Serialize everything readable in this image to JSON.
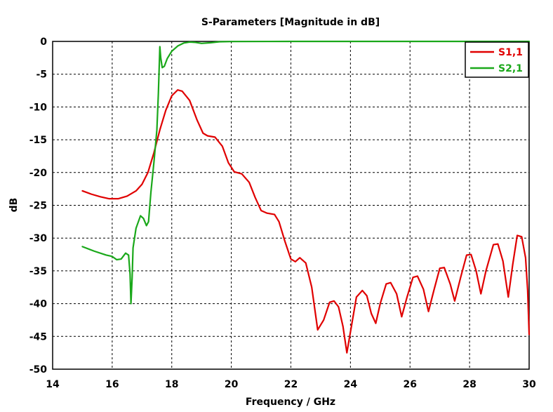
{
  "chart_data": {
    "type": "line",
    "title": "S-Parameters [Magnitude in dB]",
    "xlabel": "Frequency / GHz",
    "ylabel": "dB",
    "xlim": [
      14,
      30
    ],
    "ylim": [
      -50,
      0
    ],
    "xticks": [
      14,
      16,
      18,
      20,
      22,
      24,
      26,
      28,
      30
    ],
    "yticks": [
      0,
      -5,
      -10,
      -15,
      -20,
      -25,
      -30,
      -35,
      -40,
      -45,
      -50
    ],
    "grid": true,
    "legend_position": "top-right",
    "series": [
      {
        "name": "S1,1",
        "color": "#e00000",
        "points": [
          [
            15.0,
            -22.8
          ],
          [
            15.3,
            -23.3
          ],
          [
            15.6,
            -23.7
          ],
          [
            15.9,
            -24.0
          ],
          [
            16.2,
            -24.0
          ],
          [
            16.5,
            -23.6
          ],
          [
            16.8,
            -22.8
          ],
          [
            17.0,
            -21.8
          ],
          [
            17.2,
            -20.0
          ],
          [
            17.4,
            -17.0
          ],
          [
            17.6,
            -13.5
          ],
          [
            17.8,
            -10.5
          ],
          [
            18.0,
            -8.3
          ],
          [
            18.2,
            -7.4
          ],
          [
            18.35,
            -7.6
          ],
          [
            18.6,
            -9.0
          ],
          [
            18.85,
            -12.0
          ],
          [
            19.05,
            -14.0
          ],
          [
            19.2,
            -14.4
          ],
          [
            19.45,
            -14.6
          ],
          [
            19.7,
            -16.0
          ],
          [
            19.9,
            -18.5
          ],
          [
            20.1,
            -19.9
          ],
          [
            20.35,
            -20.2
          ],
          [
            20.6,
            -21.5
          ],
          [
            20.8,
            -23.8
          ],
          [
            21.0,
            -25.8
          ],
          [
            21.2,
            -26.2
          ],
          [
            21.45,
            -26.4
          ],
          [
            21.6,
            -27.5
          ],
          [
            21.8,
            -30.5
          ],
          [
            22.0,
            -33.2
          ],
          [
            22.15,
            -33.6
          ],
          [
            22.3,
            -33.0
          ],
          [
            22.5,
            -33.8
          ],
          [
            22.7,
            -37.5
          ],
          [
            22.9,
            -44.0
          ],
          [
            23.1,
            -42.5
          ],
          [
            23.3,
            -39.8
          ],
          [
            23.45,
            -39.6
          ],
          [
            23.6,
            -40.5
          ],
          [
            23.75,
            -43.5
          ],
          [
            23.88,
            -47.5
          ],
          [
            24.05,
            -43.0
          ],
          [
            24.2,
            -39.0
          ],
          [
            24.4,
            -38.0
          ],
          [
            24.55,
            -38.8
          ],
          [
            24.7,
            -41.5
          ],
          [
            24.85,
            -43.0
          ],
          [
            25.0,
            -40.0
          ],
          [
            25.2,
            -37.0
          ],
          [
            25.35,
            -36.8
          ],
          [
            25.55,
            -38.5
          ],
          [
            25.72,
            -42.0
          ],
          [
            25.9,
            -39.0
          ],
          [
            26.1,
            -36.0
          ],
          [
            26.25,
            -35.8
          ],
          [
            26.45,
            -37.8
          ],
          [
            26.62,
            -41.2
          ],
          [
            26.8,
            -38.0
          ],
          [
            27.0,
            -34.6
          ],
          [
            27.15,
            -34.5
          ],
          [
            27.35,
            -37.0
          ],
          [
            27.5,
            -39.6
          ],
          [
            27.7,
            -36.0
          ],
          [
            27.9,
            -32.6
          ],
          [
            28.05,
            -32.5
          ],
          [
            28.22,
            -35.0
          ],
          [
            28.38,
            -38.5
          ],
          [
            28.55,
            -35.0
          ],
          [
            28.8,
            -31.0
          ],
          [
            28.95,
            -30.9
          ],
          [
            29.12,
            -33.5
          ],
          [
            29.3,
            -39.0
          ],
          [
            29.45,
            -34.0
          ],
          [
            29.6,
            -29.6
          ],
          [
            29.75,
            -29.8
          ],
          [
            29.88,
            -33.0
          ],
          [
            29.95,
            -38.0
          ],
          [
            30.0,
            -44.7
          ]
        ]
      },
      {
        "name": "S2,1",
        "color": "#1aa81a",
        "points": [
          [
            15.0,
            -31.3
          ],
          [
            15.4,
            -32.0
          ],
          [
            15.8,
            -32.6
          ],
          [
            16.0,
            -32.8
          ],
          [
            16.15,
            -33.3
          ],
          [
            16.3,
            -33.2
          ],
          [
            16.45,
            -32.3
          ],
          [
            16.55,
            -32.6
          ],
          [
            16.6,
            -35.5
          ],
          [
            16.63,
            -40.0
          ],
          [
            16.67,
            -36.0
          ],
          [
            16.7,
            -31.5
          ],
          [
            16.8,
            -28.5
          ],
          [
            16.95,
            -26.6
          ],
          [
            17.05,
            -27.0
          ],
          [
            17.15,
            -28.1
          ],
          [
            17.22,
            -27.5
          ],
          [
            17.3,
            -23.0
          ],
          [
            17.4,
            -18.5
          ],
          [
            17.5,
            -13.5
          ],
          [
            17.55,
            -8.0
          ],
          [
            17.6,
            -0.8
          ],
          [
            17.63,
            -2.5
          ],
          [
            17.68,
            -4.0
          ],
          [
            17.75,
            -3.8
          ],
          [
            17.85,
            -2.6
          ],
          [
            18.0,
            -1.5
          ],
          [
            18.2,
            -0.7
          ],
          [
            18.4,
            -0.25
          ],
          [
            18.6,
            -0.1
          ],
          [
            18.8,
            -0.15
          ],
          [
            19.0,
            -0.3
          ],
          [
            19.3,
            -0.2
          ],
          [
            19.6,
            -0.05
          ],
          [
            20.0,
            -0.02
          ],
          [
            22.0,
            0.0
          ],
          [
            24.0,
            0.0
          ],
          [
            26.0,
            0.0
          ],
          [
            28.0,
            0.0
          ],
          [
            30.0,
            0.0
          ]
        ]
      }
    ]
  }
}
